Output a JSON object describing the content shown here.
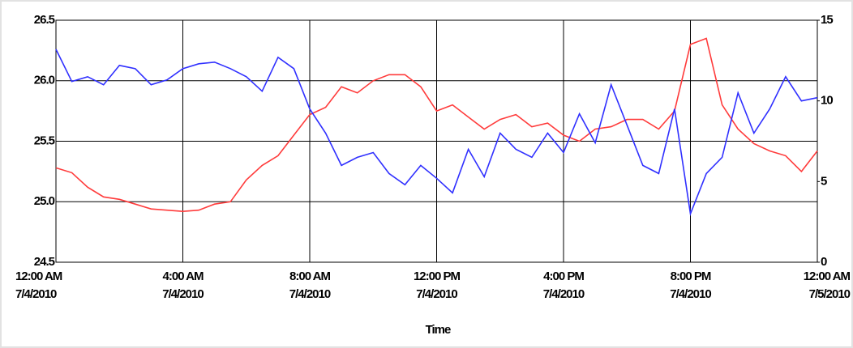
{
  "chart_data": {
    "type": "line",
    "x_label": "Time",
    "x": [
      "2010-07-04 00:00",
      "2010-07-04 00:30",
      "2010-07-04 01:00",
      "2010-07-04 01:30",
      "2010-07-04 02:00",
      "2010-07-04 02:30",
      "2010-07-04 03:00",
      "2010-07-04 03:30",
      "2010-07-04 04:00",
      "2010-07-04 04:30",
      "2010-07-04 05:00",
      "2010-07-04 05:30",
      "2010-07-04 06:00",
      "2010-07-04 06:30",
      "2010-07-04 07:00",
      "2010-07-04 07:30",
      "2010-07-04 08:00",
      "2010-07-04 08:30",
      "2010-07-04 09:00",
      "2010-07-04 09:30",
      "2010-07-04 10:00",
      "2010-07-04 10:30",
      "2010-07-04 11:00",
      "2010-07-04 11:30",
      "2010-07-04 12:00",
      "2010-07-04 12:30",
      "2010-07-04 13:00",
      "2010-07-04 13:30",
      "2010-07-04 14:00",
      "2010-07-04 14:30",
      "2010-07-04 15:00",
      "2010-07-04 15:30",
      "2010-07-04 16:00",
      "2010-07-04 16:30",
      "2010-07-04 17:00",
      "2010-07-04 17:30",
      "2010-07-04 18:00",
      "2010-07-04 18:30",
      "2010-07-04 19:00",
      "2010-07-04 19:30",
      "2010-07-04 20:00",
      "2010-07-04 20:30",
      "2010-07-04 21:00",
      "2010-07-04 21:30",
      "2010-07-04 22:00",
      "2010-07-04 22:30",
      "2010-07-04 23:00",
      "2010-07-04 23:30",
      "2010-07-05 00:00"
    ],
    "series": [
      {
        "color": "#ff3b3b",
        "axis": "y",
        "values": [
          25.28,
          25.24,
          25.12,
          25.04,
          25.02,
          24.98,
          24.94,
          24.93,
          24.92,
          24.93,
          24.98,
          25.0,
          25.18,
          25.3,
          25.38,
          25.55,
          25.72,
          25.78,
          25.95,
          25.9,
          26.0,
          26.05,
          26.05,
          25.95,
          25.75,
          25.8,
          25.7,
          25.6,
          25.68,
          25.72,
          25.62,
          25.65,
          25.55,
          25.5,
          25.6,
          25.62,
          25.68,
          25.68,
          25.6,
          25.75,
          26.3,
          26.35,
          25.8,
          25.6,
          25.48,
          25.42,
          25.38,
          25.25,
          25.42
        ]
      },
      {
        "color": "#3030ff",
        "axis": "y2",
        "values": [
          13.2,
          11.2,
          11.5,
          11.0,
          12.2,
          12.0,
          11.0,
          11.3,
          12.0,
          12.3,
          12.4,
          12.0,
          11.5,
          10.6,
          12.7,
          12.0,
          9.5,
          8.0,
          6.0,
          6.5,
          6.8,
          5.5,
          4.8,
          6.0,
          5.2,
          4.3,
          7.0,
          5.3,
          8.0,
          7.0,
          6.5,
          8.0,
          6.8,
          9.2,
          7.4,
          11.0,
          8.5,
          6.0,
          5.5,
          9.5,
          3.0,
          5.5,
          6.5,
          10.5,
          8.0,
          9.5,
          11.5,
          10.0,
          10.2
        ]
      }
    ],
    "ylim": [
      24.5,
      26.5
    ],
    "yticks": [
      24.5,
      {
        "value": 25,
        "label": "25.0"
      },
      25.5,
      {
        "value": 26,
        "label": "26.0"
      },
      26.5
    ],
    "y2lim": [
      0,
      15
    ],
    "y2ticks": [
      0,
      5,
      10,
      15
    ],
    "xlim": [
      "2010-07-04 00:00",
      "2010-07-05 00:00"
    ],
    "xticks": [
      {
        "value": "2010-07-04 00:00",
        "label": [
          "12:00 AM",
          "7/4/2010"
        ]
      },
      {
        "value": "2010-07-04 04:00",
        "label": [
          "4:00 AM",
          "7/4/2010"
        ]
      },
      {
        "value": "2010-07-04 08:00",
        "label": [
          "8:00 AM",
          "7/4/2010"
        ]
      },
      {
        "value": "2010-07-04 12:00",
        "label": [
          "12:00 PM",
          "7/4/2010"
        ]
      },
      {
        "value": "2010-07-04 16:00",
        "label": [
          "4:00 PM",
          "7/4/2010"
        ]
      },
      {
        "value": "2010-07-04 20:00",
        "label": [
          "8:00 PM",
          "7/4/2010"
        ]
      },
      {
        "value": "2010-07-05 00:00",
        "label": [
          "12:00 AM",
          "7/5/2010"
        ]
      }
    ],
    "grid": true
  }
}
